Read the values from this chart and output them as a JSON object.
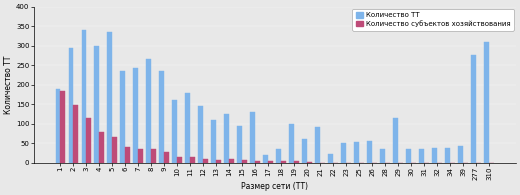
{
  "categories": [
    "1",
    "2",
    "3",
    "4",
    "5",
    "6",
    "7",
    "8",
    "9",
    "10",
    "11",
    "12",
    "13",
    "14",
    "15",
    "16",
    "17",
    "18",
    "19",
    "20",
    "21",
    "22",
    "23",
    "25",
    "26",
    "28",
    "29",
    "30",
    "31",
    "32",
    "34",
    "39",
    "277",
    "310"
  ],
  "tt_values": [
    190,
    295,
    340,
    300,
    335,
    235,
    242,
    265,
    235,
    160,
    180,
    145,
    110,
    125,
    93,
    130,
    20,
    35,
    100,
    60,
    92,
    22,
    50,
    52,
    55,
    35,
    115,
    35,
    35,
    37,
    37,
    42,
    277,
    310
  ],
  "subj_values": [
    185,
    148,
    115,
    80,
    65,
    40,
    35,
    35,
    27,
    15,
    15,
    10,
    7,
    10,
    7,
    5,
    4,
    5,
    5,
    3,
    0,
    0,
    0,
    0,
    0,
    0,
    0,
    0,
    0,
    0,
    0,
    0,
    0,
    0
  ],
  "tt_color": "#7EB4EA",
  "subj_color": "#BE4B78",
  "ylabel": "Количество ТТ",
  "xlabel": "Размер сети (ТТ)",
  "legend_tt": "Количество ТТ",
  "legend_subj": "Количество субъектов хозяйствования",
  "ylim": [
    0,
    400
  ],
  "yticks": [
    0,
    50,
    100,
    150,
    200,
    250,
    300,
    350,
    400
  ],
  "bar_width": 0.38,
  "figsize": [
    5.2,
    1.95
  ],
  "dpi": 100
}
